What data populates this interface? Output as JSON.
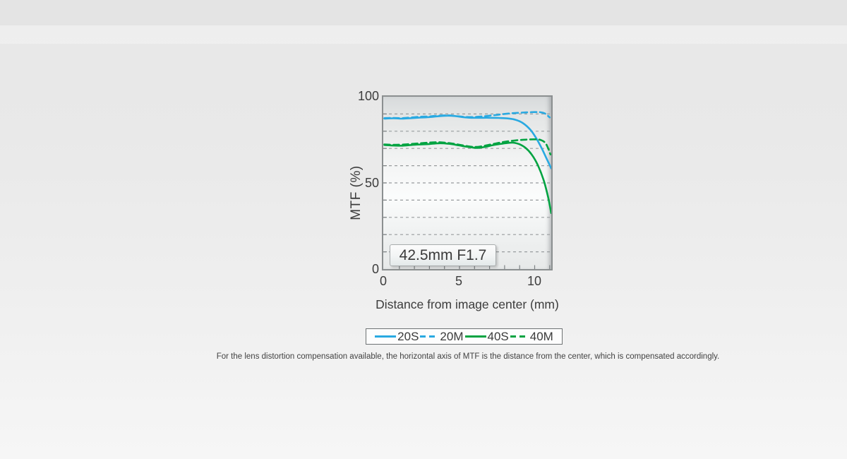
{
  "page": {
    "background_top_color": "#e8e8e8",
    "background_bottom_color": "#f6f6f6"
  },
  "chart": {
    "badge_label": "42.5mm F1.7",
    "y_axis": {
      "title": "MTF (%)",
      "tick_100": "100",
      "tick_50": "50",
      "tick_0": "0"
    },
    "x_axis": {
      "title": "Distance from image center (mm)",
      "tick_0": "0",
      "tick_5": "5",
      "tick_10": "10"
    },
    "footnote": "For the lens distortion compensation available, the horizontal axis of MTF is the distance from the center, which is compensated accordingly."
  },
  "chart_data": {
    "type": "line",
    "title": "42.5mm F1.7",
    "xlabel": "Distance from image center (mm)",
    "ylabel": "MTF (%)",
    "xlim": [
      0,
      11.2
    ],
    "ylim": [
      0,
      100
    ],
    "x_ticks": [
      0,
      5,
      10
    ],
    "y_ticks": [
      0,
      50,
      100
    ],
    "y_grid": [
      10,
      20,
      30,
      40,
      50,
      60,
      70,
      80,
      90
    ],
    "x_minor_ticks": [
      1,
      2,
      3,
      4,
      5,
      6,
      7,
      8,
      9,
      10,
      11
    ],
    "grid": "horizontal dashed lines every 10%",
    "legend_position": "below chart, boxed",
    "colors": {
      "line_20": "#29a9e1",
      "line_40": "#00a341",
      "grid": "#989c9e",
      "plot_border": "#8b8f90"
    },
    "series": [
      {
        "name": "20S",
        "style": "solid",
        "color": "#29a9e1",
        "points": [
          [
            0,
            87.3
          ],
          [
            0.6,
            87.5
          ],
          [
            1.2,
            87.3
          ],
          [
            1.8,
            87.6
          ],
          [
            2.4,
            87.9
          ],
          [
            3,
            88.2
          ],
          [
            3.6,
            88.7
          ],
          [
            4.2,
            89.0
          ],
          [
            4.7,
            88.8
          ],
          [
            5.2,
            88.2
          ],
          [
            5.8,
            87.8
          ],
          [
            6.4,
            87.8
          ],
          [
            7,
            87.8
          ],
          [
            7.6,
            87.7
          ],
          [
            8.2,
            87.4
          ],
          [
            8.7,
            86.7
          ],
          [
            9.2,
            84.8
          ],
          [
            9.7,
            81.0
          ],
          [
            10.1,
            76.0
          ],
          [
            10.5,
            69.5
          ],
          [
            10.8,
            64.0
          ],
          [
            11.1,
            58.5
          ]
        ]
      },
      {
        "name": "20M",
        "style": "dashed",
        "color": "#29a9e1",
        "points": [
          [
            0,
            87.6
          ],
          [
            0.6,
            87.7
          ],
          [
            1.2,
            87.6
          ],
          [
            1.8,
            88.0
          ],
          [
            2.4,
            88.4
          ],
          [
            3,
            88.6
          ],
          [
            3.6,
            89.0
          ],
          [
            4.2,
            89.2
          ],
          [
            4.7,
            88.9
          ],
          [
            5.2,
            88.4
          ],
          [
            5.8,
            88.2
          ],
          [
            6.4,
            88.5
          ],
          [
            7,
            89.0
          ],
          [
            7.6,
            89.6
          ],
          [
            8.2,
            90.2
          ],
          [
            8.8,
            90.6
          ],
          [
            9.4,
            90.9
          ],
          [
            10,
            91.1
          ],
          [
            10.4,
            91.0
          ],
          [
            10.7,
            90.2
          ],
          [
            11.0,
            88.0
          ]
        ]
      },
      {
        "name": "40S",
        "style": "solid",
        "color": "#00a341",
        "points": [
          [
            0,
            72.0
          ],
          [
            0.6,
            71.7
          ],
          [
            1.2,
            71.6
          ],
          [
            1.8,
            72.0
          ],
          [
            2.4,
            72.3
          ],
          [
            3,
            72.6
          ],
          [
            3.6,
            73.0
          ],
          [
            4.2,
            72.8
          ],
          [
            4.7,
            72.2
          ],
          [
            5.2,
            71.4
          ],
          [
            5.8,
            70.6
          ],
          [
            6.2,
            70.3
          ],
          [
            6.7,
            70.9
          ],
          [
            7.2,
            71.9
          ],
          [
            7.7,
            72.6
          ],
          [
            8.2,
            73.2
          ],
          [
            8.6,
            73.3
          ],
          [
            9,
            72.4
          ],
          [
            9.4,
            70.3
          ],
          [
            9.8,
            66.5
          ],
          [
            10.2,
            60.5
          ],
          [
            10.6,
            51.5
          ],
          [
            10.9,
            41.5
          ],
          [
            11.1,
            32.5
          ]
        ]
      },
      {
        "name": "40M",
        "style": "dashed",
        "color": "#00a341",
        "points": [
          [
            0,
            72.3
          ],
          [
            0.6,
            72.1
          ],
          [
            1.2,
            72.2
          ],
          [
            1.8,
            72.6
          ],
          [
            2.4,
            73.0
          ],
          [
            3,
            73.4
          ],
          [
            3.6,
            73.6
          ],
          [
            4.2,
            73.2
          ],
          [
            4.7,
            72.6
          ],
          [
            5.2,
            71.8
          ],
          [
            5.8,
            71.0
          ],
          [
            6.2,
            70.9
          ],
          [
            6.7,
            71.6
          ],
          [
            7.2,
            72.5
          ],
          [
            7.7,
            73.4
          ],
          [
            8.2,
            74.1
          ],
          [
            8.8,
            74.7
          ],
          [
            9.4,
            75.1
          ],
          [
            10,
            75.3
          ],
          [
            10.4,
            74.9
          ],
          [
            10.7,
            73.3
          ],
          [
            10.9,
            70.0
          ],
          [
            11.05,
            66.5
          ]
        ]
      }
    ]
  }
}
